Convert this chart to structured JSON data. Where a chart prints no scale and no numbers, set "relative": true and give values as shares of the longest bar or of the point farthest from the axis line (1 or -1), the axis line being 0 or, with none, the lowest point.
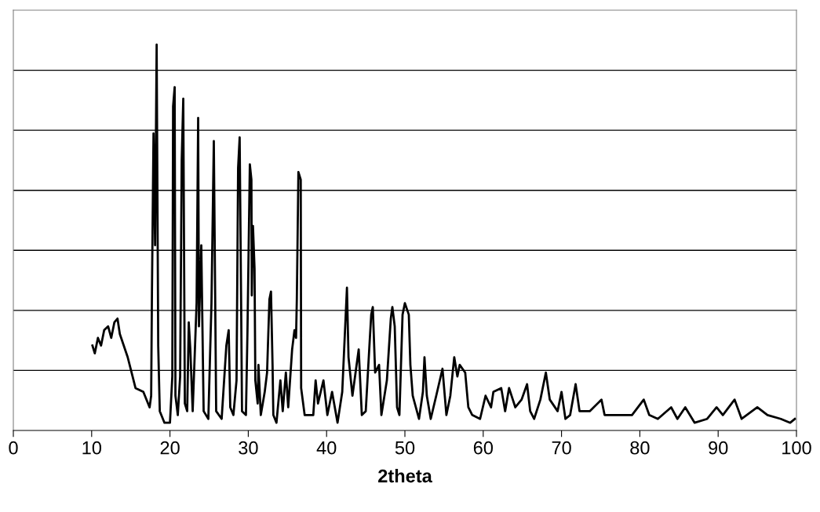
{
  "chart_data": {
    "type": "line",
    "xlabel": "2theta",
    "relative": true,
    "xlim": [
      0,
      100
    ],
    "xticks": [
      0,
      10,
      20,
      30,
      40,
      50,
      60,
      70,
      80,
      90,
      100
    ],
    "grid": "y",
    "tick_labels": "x",
    "marker": "none",
    "line_style": "solid",
    "legend": false,
    "series": [
      {
        "color": "#000000",
        "x": [
          10.1,
          10.4,
          10.8,
          11.2,
          11.6,
          12.1,
          12.5,
          12.9,
          13.3,
          13.6,
          14.1,
          14.6,
          15.1,
          15.6,
          16.6,
          17.4,
          17.6,
          17.7,
          17.9,
          18.1,
          18.3,
          18.5,
          18.7,
          19.3,
          20.0,
          20.3,
          20.4,
          20.6,
          20.7,
          21.0,
          21.3,
          21.5,
          21.7,
          21.9,
          22.2,
          22.4,
          22.6,
          22.9,
          23.4,
          23.6,
          23.7,
          24.0,
          24.3,
          24.9,
          25.3,
          25.6,
          25.9,
          26.6,
          27.2,
          27.5,
          27.7,
          28.1,
          28.5,
          28.7,
          28.9,
          29.1,
          29.2,
          29.7,
          29.9,
          30.2,
          30.4,
          30.45,
          30.6,
          30.8,
          30.9,
          31.2,
          31.3,
          31.6,
          32.1,
          32.4,
          32.7,
          32.9,
          33.1,
          33.2,
          33.6,
          34.1,
          34.4,
          34.8,
          35.1,
          35.6,
          35.9,
          36.1,
          36.2,
          36.4,
          36.7,
          36.75,
          37.2,
          38.3,
          38.6,
          38.9,
          39.6,
          40.1,
          40.7,
          41.4,
          42.0,
          42.6,
          42.8,
          43.3,
          43.7,
          44.1,
          44.5,
          45.0,
          45.5,
          45.7,
          45.9,
          46.2,
          46.7,
          47.0,
          47.7,
          48.2,
          48.4,
          48.7,
          49.0,
          49.3,
          49.7,
          50.0,
          50.5,
          50.7,
          51.0,
          51.8,
          52.3,
          52.5,
          52.8,
          53.3,
          54.0,
          54.8,
          55.3,
          55.8,
          56.3,
          56.7,
          57.0,
          57.7,
          58.1,
          58.6,
          59.6,
          60.3,
          61.0,
          61.3,
          62.3,
          62.8,
          63.3,
          64.1,
          64.9,
          65.6,
          66.0,
          66.5,
          67.3,
          68.0,
          68.5,
          69.5,
          70.0,
          70.5,
          71.1,
          71.8,
          72.3,
          73.6,
          75.1,
          75.5,
          77.0,
          79.0,
          80.5,
          81.2,
          82.3,
          84.0,
          84.8,
          85.8,
          87.0,
          88.6,
          89.8,
          90.6,
          92.1,
          93.0,
          95.0,
          96.3,
          98.0,
          99.2,
          99.8
        ],
        "values": [
          0.22,
          0.2,
          0.24,
          0.22,
          0.26,
          0.27,
          0.24,
          0.28,
          0.29,
          0.25,
          0.22,
          0.19,
          0.15,
          0.11,
          0.1,
          0.06,
          0.09,
          0.36,
          0.77,
          0.48,
          1.0,
          0.22,
          0.05,
          0.02,
          0.02,
          0.14,
          0.84,
          0.89,
          0.09,
          0.04,
          0.14,
          0.7,
          0.86,
          0.07,
          0.05,
          0.28,
          0.21,
          0.05,
          0.33,
          0.81,
          0.27,
          0.48,
          0.05,
          0.03,
          0.33,
          0.75,
          0.05,
          0.03,
          0.22,
          0.26,
          0.06,
          0.04,
          0.13,
          0.68,
          0.76,
          0.3,
          0.05,
          0.04,
          0.26,
          0.69,
          0.65,
          0.35,
          0.53,
          0.42,
          0.13,
          0.07,
          0.17,
          0.04,
          0.1,
          0.15,
          0.34,
          0.36,
          0.17,
          0.04,
          0.02,
          0.13,
          0.05,
          0.15,
          0.06,
          0.21,
          0.26,
          0.24,
          0.34,
          0.67,
          0.65,
          0.11,
          0.04,
          0.04,
          0.13,
          0.07,
          0.13,
          0.04,
          0.1,
          0.02,
          0.1,
          0.37,
          0.19,
          0.09,
          0.15,
          0.21,
          0.04,
          0.05,
          0.23,
          0.3,
          0.32,
          0.15,
          0.17,
          0.04,
          0.13,
          0.29,
          0.32,
          0.27,
          0.06,
          0.04,
          0.3,
          0.33,
          0.3,
          0.17,
          0.09,
          0.03,
          0.1,
          0.19,
          0.09,
          0.03,
          0.09,
          0.16,
          0.04,
          0.09,
          0.19,
          0.14,
          0.17,
          0.15,
          0.06,
          0.04,
          0.03,
          0.09,
          0.06,
          0.1,
          0.11,
          0.05,
          0.11,
          0.06,
          0.08,
          0.12,
          0.05,
          0.03,
          0.08,
          0.15,
          0.08,
          0.05,
          0.1,
          0.03,
          0.04,
          0.12,
          0.05,
          0.05,
          0.08,
          0.04,
          0.04,
          0.04,
          0.08,
          0.04,
          0.03,
          0.06,
          0.03,
          0.06,
          0.02,
          0.03,
          0.06,
          0.04,
          0.08,
          0.03,
          0.06,
          0.04,
          0.03,
          0.02,
          0.03
        ]
      }
    ]
  }
}
